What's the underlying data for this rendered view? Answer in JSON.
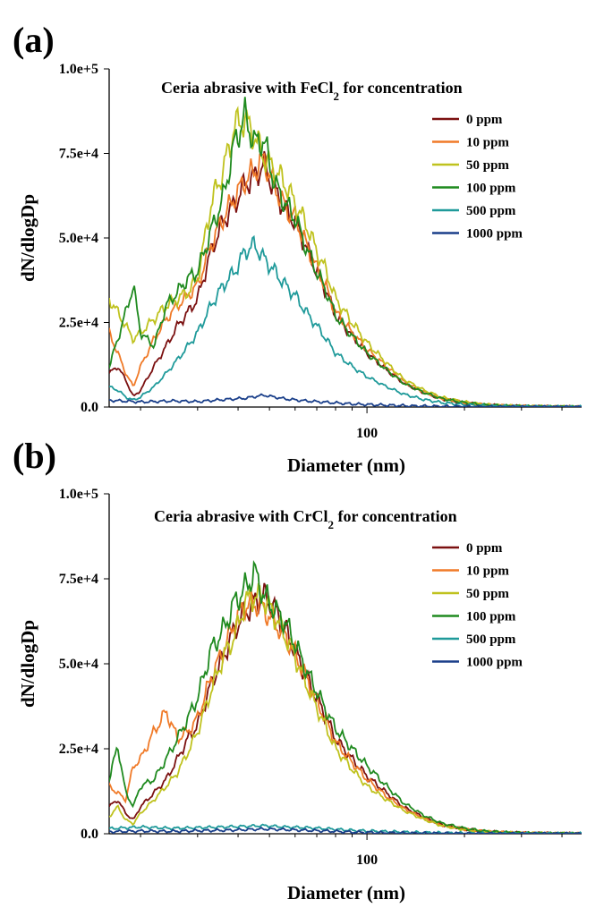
{
  "chart_data": [
    {
      "panel_label": "(a)",
      "type": "line",
      "title": "Ceria abrasive with FeCl",
      "title_subscript": "2",
      "title_suffix": " for concentration",
      "xlabel": "Diameter (nm)",
      "ylabel": "dN/dlogDp",
      "xscale": "log",
      "xlim": [
        16,
        460
      ],
      "ylim": [
        0,
        100000
      ],
      "xticks": [
        {
          "value": 100,
          "label": "100"
        }
      ],
      "yticks": [
        {
          "value": 0,
          "label": "0.0"
        },
        {
          "value": 25000,
          "label": "2.5e+4"
        },
        {
          "value": 50000,
          "label": "5.0e+4"
        },
        {
          "value": 75000,
          "label": "7.5e+4"
        },
        {
          "value": 100000,
          "label": "1.0e+5"
        }
      ],
      "legend_position": "top-right",
      "series": [
        {
          "name": "0 ppm",
          "color": "#7b1010",
          "x": [
            16,
            17,
            18,
            19,
            20,
            22,
            24,
            26,
            28,
            30,
            33,
            36,
            39,
            42,
            45,
            48,
            52,
            56,
            60,
            65,
            70,
            75,
            80,
            90,
            100,
            115,
            130,
            150,
            170,
            200,
            230,
            270,
            320,
            380,
            460
          ],
          "y": [
            10000,
            12000,
            8000,
            3000,
            5000,
            12000,
            18000,
            24000,
            28000,
            32000,
            46000,
            55000,
            60000,
            66000,
            68000,
            72000,
            64000,
            58000,
            55000,
            47000,
            40000,
            34000,
            27000,
            21000,
            16000,
            11000,
            7000,
            4200,
            2400,
            1200,
            600,
            300,
            120,
            40,
            0
          ]
        },
        {
          "name": "10 ppm",
          "color": "#f07a28",
          "x": [
            16,
            17,
            18,
            19,
            20,
            22,
            24,
            26,
            28,
            30,
            33,
            36,
            39,
            42,
            45,
            48,
            52,
            56,
            60,
            65,
            70,
            75,
            80,
            90,
            100,
            115,
            130,
            150,
            170,
            200,
            230,
            270,
            320,
            380,
            460
          ],
          "y": [
            22000,
            16000,
            10000,
            6000,
            12000,
            20000,
            26000,
            30000,
            33000,
            36000,
            48000,
            56000,
            62000,
            67000,
            70000,
            73000,
            65000,
            59000,
            56000,
            48000,
            41000,
            35000,
            28000,
            22000,
            17000,
            12000,
            7500,
            4500,
            2600,
            1300,
            650,
            320,
            130,
            50,
            0
          ]
        },
        {
          "name": "50 ppm",
          "color": "#bfc21e",
          "x": [
            16,
            17,
            18,
            19,
            20,
            22,
            24,
            26,
            28,
            30,
            33,
            36,
            39,
            42,
            45,
            48,
            52,
            56,
            60,
            65,
            70,
            75,
            80,
            90,
            100,
            115,
            130,
            150,
            170,
            200,
            230,
            270,
            320,
            380,
            460
          ],
          "y": [
            32000,
            28000,
            24000,
            20000,
            22000,
            26000,
            30000,
            32000,
            34000,
            38000,
            60000,
            70000,
            83000,
            85000,
            80000,
            74000,
            70000,
            66000,
            60000,
            54000,
            46000,
            40000,
            32000,
            25000,
            19000,
            13000,
            8200,
            5000,
            2900,
            1500,
            700,
            340,
            140,
            50,
            0
          ]
        },
        {
          "name": "100 ppm",
          "color": "#1f8a1f",
          "x": [
            16,
            17,
            18,
            19,
            20,
            22,
            24,
            26,
            28,
            30,
            33,
            36,
            39,
            42,
            45,
            48,
            52,
            56,
            60,
            65,
            70,
            75,
            80,
            90,
            100,
            115,
            130,
            150,
            170,
            200,
            230,
            270,
            320,
            380,
            460
          ],
          "y": [
            12000,
            20000,
            28000,
            36000,
            22000,
            18000,
            30000,
            34000,
            38000,
            40000,
            52000,
            62000,
            78000,
            86000,
            78000,
            79000,
            66000,
            60000,
            56000,
            47000,
            40000,
            34000,
            27000,
            21000,
            16000,
            11000,
            7000,
            4300,
            2500,
            1300,
            620,
            310,
            120,
            40,
            0
          ]
        },
        {
          "name": "500 ppm",
          "color": "#1f9a9a",
          "x": [
            16,
            17,
            18,
            19,
            20,
            22,
            24,
            26,
            28,
            30,
            33,
            36,
            39,
            42,
            45,
            48,
            52,
            56,
            60,
            65,
            70,
            75,
            80,
            90,
            100,
            115,
            130,
            150,
            170,
            200,
            230,
            270,
            320,
            380,
            460
          ],
          "y": [
            6000,
            5000,
            3000,
            2000,
            3000,
            6000,
            10000,
            14000,
            18000,
            22000,
            30000,
            36000,
            40000,
            46000,
            48000,
            44000,
            40000,
            36000,
            33000,
            28000,
            24000,
            20000,
            16000,
            12000,
            9000,
            6000,
            3800,
            2200,
            1300,
            700,
            350,
            180,
            80,
            30,
            0
          ]
        },
        {
          "name": "1000 ppm",
          "color": "#1a3f8a",
          "x": [
            16,
            20,
            25,
            30,
            36,
            42,
            48,
            56,
            65,
            75,
            90,
            110,
            140,
            180,
            240,
            320,
            460
          ],
          "y": [
            2000,
            1500,
            1800,
            1600,
            2200,
            2600,
            3500,
            2400,
            1800,
            1400,
            900,
            600,
            300,
            150,
            60,
            20,
            0
          ]
        }
      ]
    },
    {
      "panel_label": "(b)",
      "type": "line",
      "title": "Ceria abrasive with CrCl",
      "title_subscript": "2",
      "title_suffix": " for concentration",
      "xlabel": "Diameter (nm)",
      "ylabel": "dN/dlogDp",
      "xscale": "log",
      "xlim": [
        16,
        460
      ],
      "ylim": [
        0,
        100000
      ],
      "xticks": [
        {
          "value": 100,
          "label": "100"
        }
      ],
      "yticks": [
        {
          "value": 0,
          "label": "0.0"
        },
        {
          "value": 25000,
          "label": "2.5e+4"
        },
        {
          "value": 50000,
          "label": "5.0e+4"
        },
        {
          "value": 75000,
          "label": "7.5e+4"
        },
        {
          "value": 100000,
          "label": "1.0e+5"
        }
      ],
      "legend_position": "top-right",
      "series": [
        {
          "name": "0 ppm",
          "color": "#7b1010",
          "x": [
            16,
            17,
            18,
            19,
            20,
            22,
            24,
            26,
            28,
            30,
            33,
            36,
            39,
            42,
            45,
            48,
            52,
            56,
            60,
            65,
            70,
            75,
            80,
            90,
            100,
            115,
            130,
            150,
            170,
            200,
            230,
            270,
            320,
            380,
            460
          ],
          "y": [
            8000,
            10000,
            6000,
            4000,
            8000,
            12000,
            16000,
            22000,
            28000,
            32000,
            44000,
            52000,
            60000,
            65000,
            68000,
            70000,
            66000,
            60000,
            54000,
            46000,
            40000,
            34000,
            28000,
            22000,
            17000,
            12000,
            7800,
            4800,
            2700,
            1400,
            650,
            320,
            130,
            40,
            0
          ]
        },
        {
          "name": "10 ppm",
          "color": "#f07a28",
          "x": [
            16,
            17,
            18,
            19,
            20,
            22,
            24,
            26,
            28,
            30,
            33,
            36,
            39,
            42,
            45,
            48,
            52,
            56,
            60,
            65,
            70,
            75,
            80,
            90,
            100,
            115,
            130,
            150,
            170,
            200,
            230,
            270,
            320,
            380,
            460
          ],
          "y": [
            14000,
            12000,
            10000,
            20000,
            22000,
            30000,
            36000,
            28000,
            30000,
            34000,
            46000,
            54000,
            62000,
            67000,
            68000,
            66000,
            62000,
            58000,
            53000,
            46000,
            39000,
            33000,
            27000,
            21000,
            16000,
            11000,
            7400,
            4500,
            2600,
            1300,
            620,
            300,
            120,
            40,
            0
          ]
        },
        {
          "name": "50 ppm",
          "color": "#bfc21e",
          "x": [
            16,
            17,
            18,
            19,
            20,
            22,
            24,
            26,
            28,
            30,
            33,
            36,
            39,
            42,
            45,
            48,
            52,
            56,
            60,
            65,
            70,
            75,
            80,
            90,
            100,
            115,
            130,
            150,
            170,
            200,
            230,
            270,
            320,
            380,
            460
          ],
          "y": [
            5000,
            8000,
            4000,
            3000,
            6000,
            10000,
            14000,
            18000,
            24000,
            30000,
            42000,
            52000,
            58000,
            68000,
            70000,
            69000,
            64000,
            58000,
            52000,
            44000,
            37000,
            31000,
            25000,
            19000,
            14000,
            10000,
            6800,
            4200,
            2400,
            1200,
            580,
            280,
            110,
            40,
            0
          ]
        },
        {
          "name": "100 ppm",
          "color": "#1f8a1f",
          "x": [
            16,
            17,
            18,
            19,
            20,
            22,
            24,
            26,
            28,
            30,
            33,
            36,
            39,
            42,
            45,
            48,
            52,
            56,
            60,
            65,
            70,
            75,
            80,
            90,
            100,
            115,
            130,
            150,
            170,
            200,
            230,
            270,
            320,
            380,
            460
          ],
          "y": [
            16000,
            26000,
            12000,
            8000,
            14000,
            16000,
            22000,
            28000,
            34000,
            40000,
            54000,
            60000,
            68000,
            72000,
            77000,
            70000,
            66000,
            62000,
            56000,
            48000,
            42000,
            36000,
            31000,
            25000,
            20000,
            14000,
            9000,
            5400,
            3100,
            1600,
            750,
            360,
            140,
            50,
            0
          ]
        },
        {
          "name": "500 ppm",
          "color": "#1f9a9a",
          "x": [
            16,
            20,
            25,
            30,
            36,
            42,
            48,
            56,
            65,
            75,
            90,
            110,
            140,
            180,
            240,
            320,
            460
          ],
          "y": [
            1500,
            2000,
            1600,
            1800,
            2000,
            2200,
            2400,
            2000,
            1800,
            1500,
            1000,
            700,
            400,
            200,
            80,
            30,
            0
          ]
        },
        {
          "name": "1000 ppm",
          "color": "#1a3f8a",
          "x": [
            16,
            20,
            25,
            30,
            36,
            42,
            48,
            56,
            65,
            75,
            90,
            110,
            140,
            180,
            240,
            320,
            460
          ],
          "y": [
            600,
            800,
            700,
            900,
            1000,
            1200,
            1400,
            1200,
            1000,
            800,
            500,
            300,
            150,
            80,
            30,
            10,
            0
          ]
        }
      ]
    }
  ]
}
